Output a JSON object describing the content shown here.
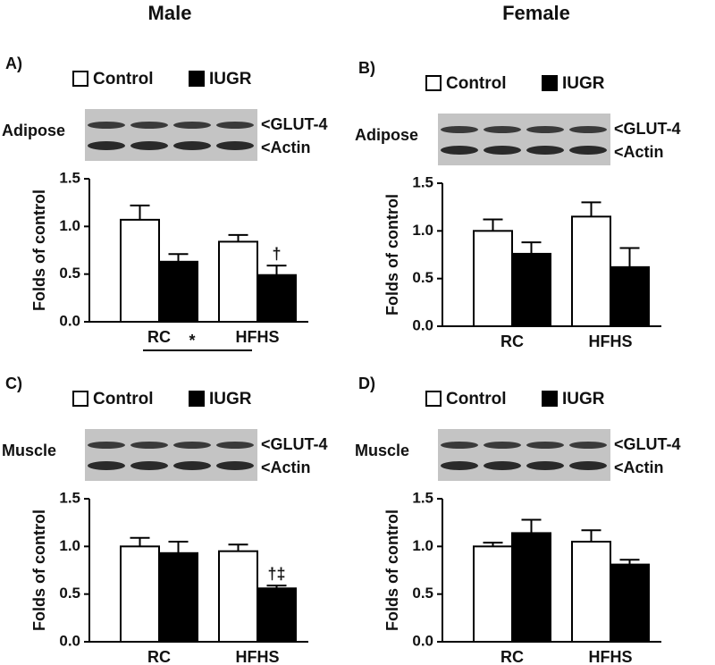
{
  "headers": [
    "Male",
    "Female"
  ],
  "chart_data": [
    {
      "type": "bar",
      "panel": "A)",
      "tissue": "Adipose",
      "bands": [
        "<GLUT-4",
        "<Actin"
      ],
      "y_label": "Folds of control",
      "categories": [
        "RC",
        "HFHS"
      ],
      "series": [
        {
          "name": "Control",
          "color": "#ffffff",
          "values": [
            1.07,
            0.84
          ],
          "errors": [
            0.15,
            0.07
          ]
        },
        {
          "name": "IUGR",
          "color": "#000000",
          "values": [
            0.63,
            0.49
          ],
          "errors": [
            0.08,
            0.1
          ],
          "value_notes": [
            null,
            "†"
          ]
        }
      ],
      "comparison_label": "*",
      "ylim": [
        0,
        1.5
      ],
      "yticks": [
        {
          "value": 0,
          "label": "0.0"
        },
        {
          "value": 0.5,
          "label": "0.5"
        },
        {
          "value": 1,
          "label": "1.0"
        },
        {
          "value": 1.5,
          "label": "1.5"
        }
      ]
    },
    {
      "type": "bar",
      "panel": "B)",
      "tissue": "Adipose",
      "bands": [
        "<GLUT-4",
        "<Actin"
      ],
      "y_label": "Folds of control",
      "categories": [
        "RC",
        "HFHS"
      ],
      "series": [
        {
          "name": "Control",
          "color": "#ffffff",
          "values": [
            1.0,
            1.15
          ],
          "errors": [
            0.12,
            0.15
          ]
        },
        {
          "name": "IUGR",
          "color": "#000000",
          "values": [
            0.76,
            0.62
          ],
          "errors": [
            0.12,
            0.2
          ]
        }
      ],
      "ylim": [
        0,
        1.5
      ],
      "yticks": [
        {
          "value": 0,
          "label": "0.0"
        },
        {
          "value": 0.5,
          "label": "0.5"
        },
        {
          "value": 1,
          "label": "1.0"
        },
        {
          "value": 1.5,
          "label": "1.5"
        }
      ]
    },
    {
      "type": "bar",
      "panel": "C)",
      "tissue": "Muscle",
      "bands": [
        "<GLUT-4",
        "<Actin"
      ],
      "y_label": "Folds of control",
      "categories": [
        "RC",
        "HFHS"
      ],
      "series": [
        {
          "name": "Control",
          "color": "#ffffff",
          "values": [
            1.0,
            0.95
          ],
          "errors": [
            0.09,
            0.07
          ]
        },
        {
          "name": "IUGR",
          "color": "#000000",
          "values": [
            0.93,
            0.56
          ],
          "errors": [
            0.12,
            0.03
          ],
          "value_notes": [
            null,
            "†‡"
          ]
        }
      ],
      "ylim": [
        0,
        1.5
      ],
      "yticks": [
        {
          "value": 0,
          "label": "0.0"
        },
        {
          "value": 0.5,
          "label": "0.5"
        },
        {
          "value": 1,
          "label": "1.0"
        },
        {
          "value": 1.5,
          "label": "1.5"
        }
      ]
    },
    {
      "type": "bar",
      "panel": "D)",
      "tissue": "Muscle",
      "bands": [
        "<GLUT-4",
        "<Actin"
      ],
      "y_label": "Folds of control",
      "categories": [
        "RC",
        "HFHS"
      ],
      "series": [
        {
          "name": "Control",
          "color": "#ffffff",
          "values": [
            1.0,
            1.05
          ],
          "errors": [
            0.04,
            0.12
          ]
        },
        {
          "name": "IUGR",
          "color": "#000000",
          "values": [
            1.14,
            0.81
          ],
          "errors": [
            0.14,
            0.05
          ]
        }
      ],
      "ylim": [
        0,
        1.5
      ],
      "yticks": [
        {
          "value": 0,
          "label": "0.0"
        },
        {
          "value": 0.5,
          "label": "0.5"
        },
        {
          "value": 1,
          "label": "1.0"
        },
        {
          "value": 1.5,
          "label": "1.5"
        }
      ]
    }
  ]
}
